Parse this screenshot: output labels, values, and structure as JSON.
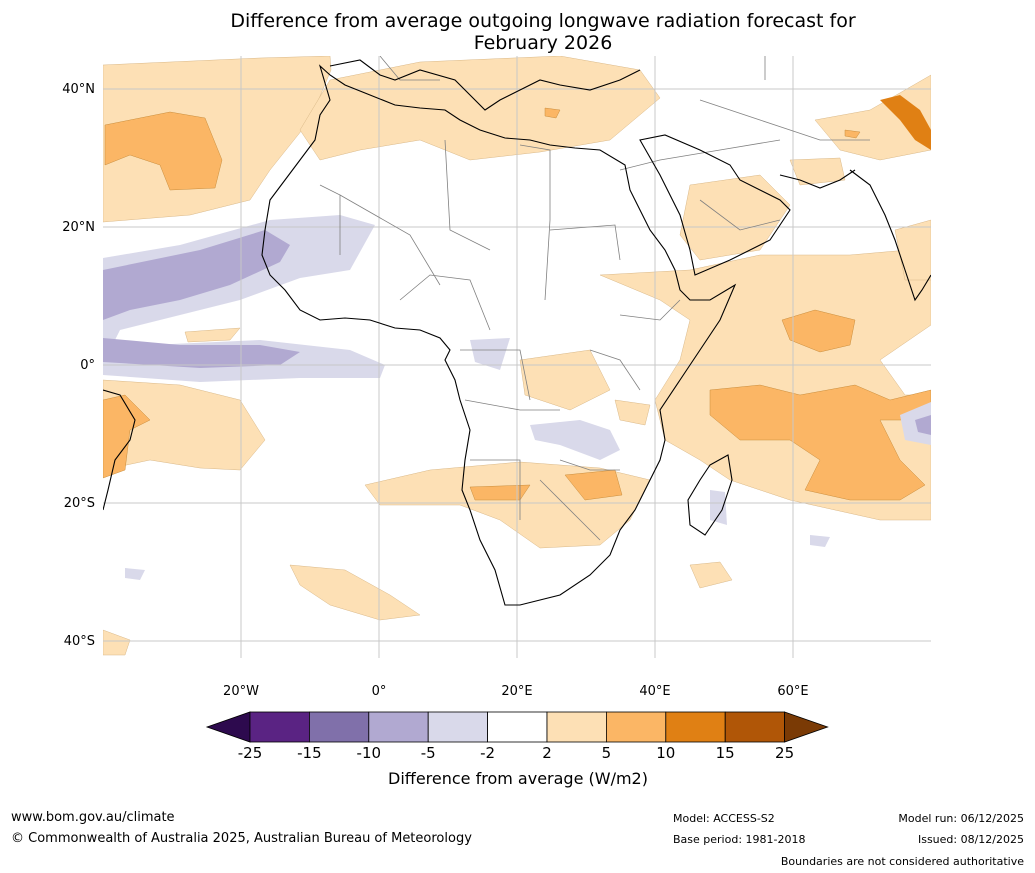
{
  "title": "Difference from average outgoing longwave radiation forecast for February 2026",
  "title_line1": "Difference from average outgoing longwave radiation forecast for",
  "title_line2": "February 2026",
  "lat_labels": [
    "40°N",
    "20°N",
    "0°",
    "20°S",
    "40°S"
  ],
  "lon_labels": [
    "20°W",
    "0°",
    "20°E",
    "40°E",
    "60°E"
  ],
  "colorbar": {
    "title": "Difference from average (W/m2)",
    "ticks": [
      "-25",
      "-15",
      "-10",
      "-5",
      "-2",
      "2",
      "5",
      "10",
      "15",
      "25"
    ],
    "colors": [
      "#2d0a4e",
      "#5a2383",
      "#8070aa",
      "#b1a9d1",
      "#d9d9ea",
      "#ffffff",
      "#fde0b5",
      "#fbb665",
      "#e08014",
      "#b05607",
      "#7a3a05"
    ]
  },
  "footer": {
    "url": "www.bom.gov.au/climate",
    "copyright": "© Commonwealth of Australia 2025, Australian Bureau of Meteorology",
    "model": "Model: ACCESS-S2",
    "base_period": "Base period: 1981-2018",
    "model_run": "Model run: 06/12/2025",
    "issued": "Issued: 08/12/2025",
    "disclaimer": "Boundaries are not considered authoritative"
  }
}
